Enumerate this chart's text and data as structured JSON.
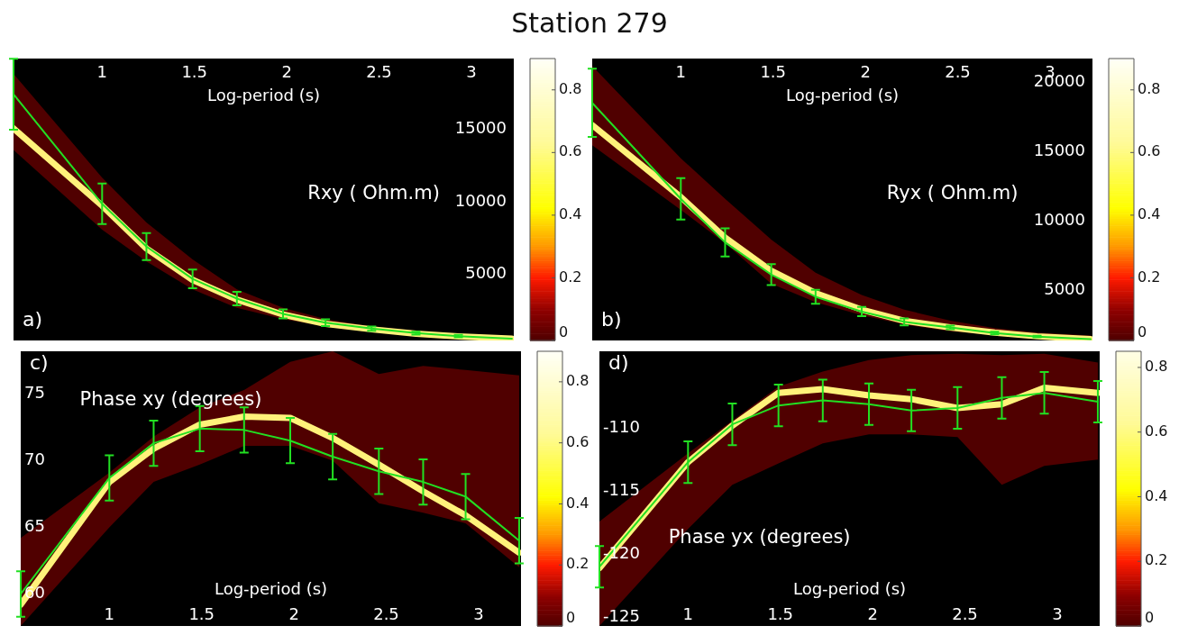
{
  "chart_data": [
    {
      "type": "line",
      "title": "Station 279",
      "xlabel": "Log-period (s)",
      "ylabel": "Rxy ( Ohm.m)",
      "annotations": [
        "a)"
      ],
      "marker": "none",
      "xlim": [
        0.52,
        3.23
      ],
      "xticks": [
        1,
        1.5,
        2,
        2.5,
        3
      ],
      "ylim": [
        440,
        19900
      ],
      "yticks": [
        5000,
        10000,
        15000
      ],
      "clim": [
        0,
        0.9
      ],
      "cticks": [
        0,
        0.2,
        0.4,
        0.6,
        0.8
      ],
      "x": [
        0.52,
        1.0,
        1.24,
        1.49,
        1.73,
        1.98,
        2.21,
        2.46,
        2.7,
        2.93,
        3.22
      ],
      "series": [
        {
          "color": "#fff27a",
          "values": [
            15080,
            9740,
            6790,
            4620,
            3260,
            2230,
            1590,
            1210,
            900,
            720,
            560
          ],
          "lower": [
            13590,
            8080,
            5900,
            3970,
            2690,
            1920,
            1410,
            1030,
            770,
            640,
            490
          ],
          "upper": [
            18850,
            11670,
            8590,
            6030,
            3970,
            2690,
            1920,
            1410,
            1100,
            850,
            640
          ]
        },
        {
          "color": "#22e022",
          "values": [
            17440,
            9870,
            6920,
            4690,
            3330,
            2280,
            1670,
            1260,
            950,
            740,
            560
          ],
          "errors": [
            2450,
            1400,
            930,
            640,
            460,
            310,
            230,
            150,
            100,
            90,
            null
          ]
        }
      ]
    },
    {
      "type": "line",
      "xlabel": "Log-period (s)",
      "ylabel": "Ryx ( Ohm.m)",
      "annotations": [
        "b)"
      ],
      "marker": "none",
      "xlim": [
        0.52,
        3.23
      ],
      "xticks": [
        1,
        1.5,
        2,
        2.5,
        3
      ],
      "ylim": [
        1400,
        21700
      ],
      "yticks": [
        5000,
        10000,
        15000,
        20000
      ],
      "clim": [
        0,
        0.9
      ],
      "cticks": [
        0,
        0.2,
        0.4,
        0.6,
        0.8
      ],
      "x": [
        0.52,
        1.0,
        1.24,
        1.49,
        1.73,
        1.98,
        2.21,
        2.46,
        2.7,
        2.93,
        3.22
      ],
      "series": [
        {
          "color": "#fff27a",
          "values": [
            16910,
            11730,
            8800,
            6410,
            4810,
            3620,
            2820,
            2340,
            1970,
            1700,
            1490
          ],
          "lower": [
            15450,
            10800,
            8400,
            5480,
            4150,
            3220,
            2550,
            2070,
            1810,
            1620,
            1490
          ],
          "upper": [
            21170,
            14520,
            11600,
            8670,
            6280,
            4680,
            3620,
            2820,
            2290,
            1970,
            1760
          ]
        },
        {
          "color": "#22e022",
          "values": [
            18510,
            11600,
            8460,
            6140,
            4550,
            3480,
            2740,
            2340,
            1940,
            1680,
            1490
          ],
          "errors": [
            2460,
            1490,
            1020,
            750,
            500,
            330,
            250,
            130,
            100,
            60,
            null
          ]
        }
      ]
    },
    {
      "type": "line",
      "xlabel": "Log-period (s)",
      "ylabel": "Phase xy (degrees)",
      "annotations": [
        "c)"
      ],
      "marker": "none",
      "xlim": [
        0.52,
        3.23
      ],
      "xticks": [
        1,
        1.5,
        2,
        2.5,
        3
      ],
      "ylim": [
        57.6,
        78.2
      ],
      "yticks": [
        60,
        65,
        70,
        75
      ],
      "clim": [
        0,
        0.9
      ],
      "cticks": [
        0,
        0.2,
        0.4,
        0.6,
        0.8
      ],
      "x": [
        0.52,
        1.0,
        1.24,
        1.49,
        1.73,
        1.98,
        2.21,
        2.46,
        2.7,
        2.93,
        3.22
      ],
      "series": [
        {
          "color": "#fff27a",
          "values": [
            59.2,
            68.4,
            70.9,
            72.7,
            73.3,
            73.2,
            71.7,
            69.7,
            67.7,
            65.9,
            63.1
          ],
          "lower": [
            57.6,
            65.0,
            68.4,
            69.7,
            71.1,
            71.1,
            70.0,
            66.8,
            66.1,
            65.3,
            62.0
          ],
          "upper": [
            64.2,
            69.1,
            71.8,
            74.0,
            75.3,
            77.4,
            78.2,
            76.5,
            77.1,
            76.8,
            76.4
          ]
        },
        {
          "color": "#22e022",
          "values": [
            60.0,
            68.7,
            71.3,
            72.4,
            72.3,
            71.5,
            70.3,
            69.2,
            68.4,
            67.3,
            64.0
          ],
          "errors": [
            1.7,
            1.7,
            1.7,
            1.7,
            1.7,
            1.7,
            1.7,
            1.7,
            1.7,
            1.7,
            1.7
          ]
        }
      ]
    },
    {
      "type": "line",
      "xlabel": "Log-period (s)",
      "ylabel": "Phase yx (degrees)",
      "annotations": [
        "d)"
      ],
      "marker": "none",
      "xlim": [
        0.52,
        3.23
      ],
      "xticks": [
        1,
        1.5,
        2,
        2.5,
        3
      ],
      "ylim": [
        -125.7,
        -103.9
      ],
      "yticks": [
        -125,
        -120,
        -115,
        -110
      ],
      "clim": [
        0,
        0.85
      ],
      "cticks": [
        0,
        0.2,
        0.4,
        0.6,
        0.8
      ],
      "x": [
        0.52,
        1.0,
        1.24,
        1.49,
        1.73,
        1.98,
        2.21,
        2.46,
        2.7,
        2.93,
        3.22
      ],
      "series": [
        {
          "color": "#fff27a",
          "values": [
            -121.1,
            -112.7,
            -109.8,
            -107.2,
            -106.9,
            -107.4,
            -107.7,
            -108.4,
            -108.1,
            -106.8,
            -107.2
          ],
          "lower": [
            -125.7,
            -118.0,
            -114.5,
            -112.8,
            -111.2,
            -110.5,
            -110.5,
            -110.7,
            -114.5,
            -113.0,
            -112.5
          ],
          "upper": [
            -117.4,
            -112.0,
            -109.4,
            -106.7,
            -105.5,
            -104.6,
            -104.2,
            -104.1,
            -104.2,
            -104.1,
            -104.8
          ]
        },
        {
          "color": "#22e022",
          "values": [
            -121.0,
            -112.7,
            -109.7,
            -108.2,
            -107.8,
            -108.1,
            -108.6,
            -108.4,
            -107.6,
            -107.2,
            -107.9
          ],
          "errors": [
            1.65,
            1.65,
            1.65,
            1.65,
            1.65,
            1.65,
            1.65,
            1.65,
            1.65,
            1.65,
            1.65
          ]
        }
      ]
    }
  ]
}
